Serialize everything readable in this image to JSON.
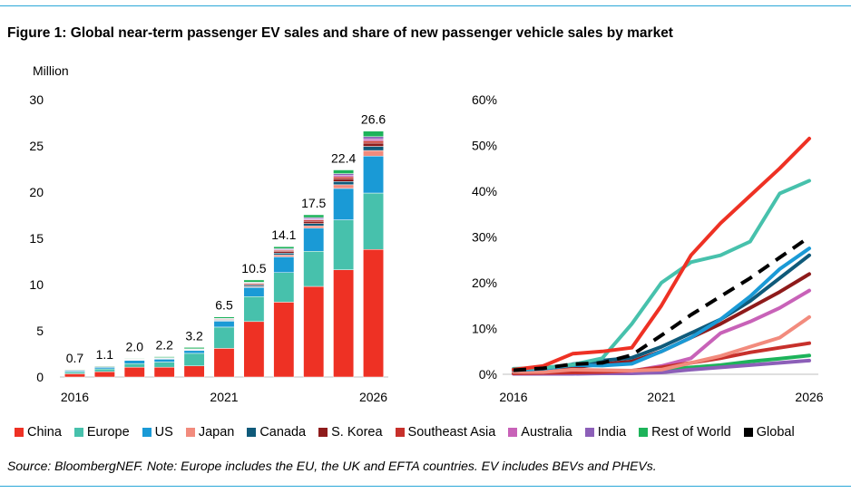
{
  "title": "Figure 1: Global near-term passenger EV sales and share of new passenger vehicle sales by market",
  "source": "Source: BloombergNEF. Note: Europe includes the EU, the UK and EFTA countries. EV includes BEVs and PHEVs.",
  "legend": [
    {
      "name": "China",
      "color": "#ee3124"
    },
    {
      "name": "Europe",
      "color": "#47c1ac"
    },
    {
      "name": "US",
      "color": "#1a9ad6"
    },
    {
      "name": "Japan",
      "color": "#f28b7d"
    },
    {
      "name": "Canada",
      "color": "#0f5a7a"
    },
    {
      "name": "S. Korea",
      "color": "#8e1b1b"
    },
    {
      "name": "Southeast Asia",
      "color": "#c7302b"
    },
    {
      "name": "Australia",
      "color": "#c862b8"
    },
    {
      "name": "India",
      "color": "#8c5fb8"
    },
    {
      "name": "Rest of World",
      "color": "#1db35a"
    },
    {
      "name": "Global",
      "color": "#000000"
    }
  ],
  "chart_data": [
    {
      "type": "bar",
      "stacked": true,
      "ylabel": "Million",
      "ylim": [
        0,
        30
      ],
      "yticks": [
        "0",
        "5",
        "10",
        "15",
        "20",
        "25",
        "30"
      ],
      "categories": [
        "2016",
        "2017",
        "2018",
        "2019",
        "2020",
        "2021",
        "2022",
        "2023",
        "2024",
        "2025",
        "2026"
      ],
      "xtick_labels": [
        "2016",
        "",
        "",
        "",
        "",
        "2021",
        "",
        "",
        "",
        "",
        "2026"
      ],
      "totals": [
        "0.7",
        "1.1",
        "2.0",
        "2.2",
        "3.2",
        "6.5",
        "10.5",
        "14.1",
        "17.5",
        "22.4",
        "26.6"
      ],
      "series": [
        {
          "name": "China",
          "values": [
            0.35,
            0.58,
            1.06,
            1.06,
            1.2,
            3.1,
            6.0,
            8.1,
            9.8,
            11.6,
            13.8
          ]
        },
        {
          "name": "Europe",
          "values": [
            0.2,
            0.3,
            0.39,
            0.56,
            1.36,
            2.3,
            2.7,
            3.2,
            3.8,
            5.4,
            6.1
          ]
        },
        {
          "name": "US",
          "values": [
            0.16,
            0.2,
            0.35,
            0.32,
            0.33,
            0.65,
            1.0,
            1.7,
            2.5,
            3.4,
            4.0
          ]
        },
        {
          "name": "Japan",
          "values": [
            0.02,
            0.02,
            0.05,
            0.04,
            0.03,
            0.05,
            0.1,
            0.2,
            0.25,
            0.4,
            0.6
          ]
        },
        {
          "name": "Canada",
          "values": [
            0.01,
            0.02,
            0.04,
            0.05,
            0.05,
            0.08,
            0.15,
            0.2,
            0.25,
            0.35,
            0.45
          ]
        },
        {
          "name": "S. Korea",
          "values": [
            0.01,
            0.01,
            0.03,
            0.04,
            0.05,
            0.1,
            0.15,
            0.2,
            0.25,
            0.3,
            0.35
          ]
        },
        {
          "name": "Southeast Asia",
          "values": [
            0.0,
            0.0,
            0.01,
            0.01,
            0.01,
            0.02,
            0.05,
            0.1,
            0.15,
            0.2,
            0.25
          ]
        },
        {
          "name": "Australia",
          "values": [
            0.0,
            0.0,
            0.01,
            0.01,
            0.01,
            0.02,
            0.05,
            0.08,
            0.1,
            0.15,
            0.2
          ]
        },
        {
          "name": "India",
          "values": [
            0.0,
            0.0,
            0.0,
            0.01,
            0.01,
            0.02,
            0.05,
            0.1,
            0.15,
            0.2,
            0.25
          ]
        },
        {
          "name": "Rest of World",
          "values": [
            0.05,
            0.07,
            0.06,
            0.1,
            0.15,
            0.16,
            0.25,
            0.22,
            0.3,
            0.4,
            0.6
          ]
        }
      ]
    },
    {
      "type": "line",
      "ylim": [
        0,
        60
      ],
      "yticks": [
        "0%",
        "10%",
        "20%",
        "30%",
        "40%",
        "50%",
        "60%"
      ],
      "x": [
        "2016",
        "2017",
        "2018",
        "2019",
        "2020",
        "2021",
        "2022",
        "2023",
        "2024",
        "2025",
        "2026"
      ],
      "xtick_labels": [
        "2016",
        "",
        "",
        "",
        "",
        "2021",
        "",
        "",
        "",
        "",
        "2026"
      ],
      "series": [
        {
          "name": "China",
          "values": [
            1.0,
            1.8,
            4.5,
            5.0,
            5.8,
            15,
            26,
            33,
            39,
            45,
            51.5
          ]
        },
        {
          "name": "Europe",
          "values": [
            1.2,
            1.4,
            2.1,
            3.5,
            11,
            20,
            24.5,
            26,
            29,
            39.5,
            42.3
          ]
        },
        {
          "name": "US",
          "values": [
            0.9,
            1.2,
            2.0,
            1.9,
            2.3,
            5,
            8,
            12,
            17,
            23,
            27.5
          ]
        },
        {
          "name": "Japan",
          "values": [
            0.5,
            0.5,
            1.0,
            0.9,
            0.8,
            1.0,
            2.5,
            4,
            6,
            8,
            12.5
          ]
        },
        {
          "name": "Canada",
          "values": [
            0.6,
            0.9,
            2.2,
            3.0,
            3.6,
            6,
            9,
            12,
            16,
            21,
            26
          ]
        },
        {
          "name": "S. Korea",
          "values": [
            0.4,
            0.7,
            1.5,
            2.2,
            2.8,
            5,
            8,
            11,
            14.5,
            18,
            21.9
          ]
        },
        {
          "name": "Southeast Asia",
          "values": [
            0.2,
            0.3,
            0.4,
            0.5,
            0.8,
            1.5,
            2.5,
            3.5,
            4.8,
            5.8,
            6.8
          ]
        },
        {
          "name": "Australia",
          "values": [
            0.2,
            0.3,
            0.5,
            0.6,
            0.7,
            1.8,
            3.5,
            9,
            11.5,
            14.5,
            18.3
          ]
        },
        {
          "name": "India",
          "values": [
            0.1,
            0.1,
            0.1,
            0.2,
            0.2,
            0.4,
            1.0,
            1.5,
            2.0,
            2.5,
            3.0
          ]
        },
        {
          "name": "Rest of World",
          "values": [
            0.3,
            0.4,
            0.5,
            0.6,
            0.7,
            1.0,
            1.5,
            2.0,
            2.8,
            3.4,
            4.1
          ]
        },
        {
          "name": "Global",
          "values": [
            0.9,
            1.3,
            2.2,
            2.5,
            4.2,
            8.5,
            13,
            17,
            21,
            25.5,
            30
          ]
        }
      ]
    }
  ]
}
